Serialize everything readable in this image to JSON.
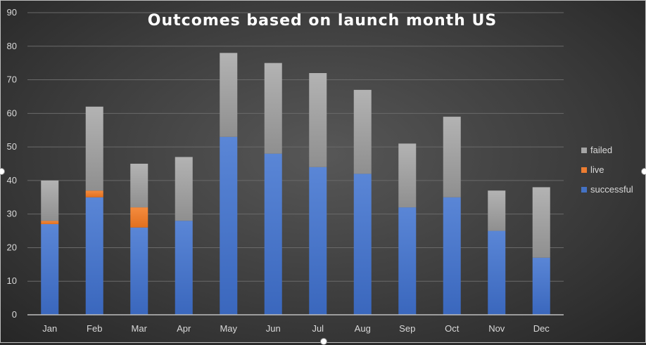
{
  "chart_data": {
    "type": "bar",
    "stacked": true,
    "title": "Outcomes based on launch month US",
    "categories": [
      "Jan",
      "Feb",
      "Mar",
      "Apr",
      "May",
      "Jun",
      "Jul",
      "Aug",
      "Sep",
      "Oct",
      "Nov",
      "Dec"
    ],
    "series": [
      {
        "name": "successful",
        "color": "#4472c4",
        "values": [
          27,
          35,
          26,
          28,
          53,
          48,
          44,
          42,
          32,
          35,
          25,
          17
        ]
      },
      {
        "name": "live",
        "color": "#ed7d31",
        "values": [
          1,
          2,
          6,
          0,
          0,
          0,
          0,
          0,
          0,
          0,
          0,
          0
        ]
      },
      {
        "name": "failed",
        "color": "#a5a5a5",
        "values": [
          12,
          25,
          13,
          19,
          25,
          27,
          28,
          25,
          19,
          24,
          12,
          21
        ]
      }
    ],
    "yticks": [
      "0",
      "10",
      "20",
      "30",
      "40",
      "50",
      "60",
      "70",
      "80",
      "90"
    ],
    "ylim": [
      0,
      90
    ],
    "grid": true,
    "legend": {
      "position": "right",
      "order": [
        "failed",
        "live",
        "successful"
      ]
    }
  }
}
